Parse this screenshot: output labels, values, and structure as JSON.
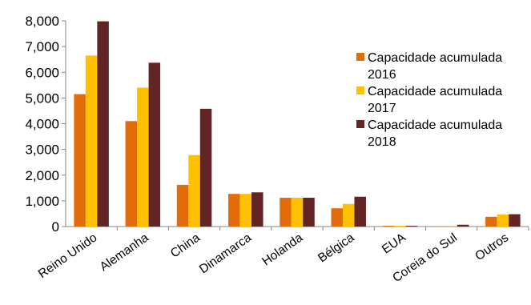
{
  "chart_data": {
    "type": "bar",
    "title": "",
    "xlabel": "",
    "ylabel": "",
    "ylim": [
      0,
      8000
    ],
    "yticks": [
      0,
      1000,
      2000,
      3000,
      4000,
      5000,
      6000,
      7000,
      8000
    ],
    "ytick_labels": [
      "0",
      "1,000",
      "2,000",
      "3,000",
      "4,000",
      "5,000",
      "6,000",
      "7,000",
      "8,000"
    ],
    "grid": false,
    "legend_position": "right",
    "categories": [
      "Reino Unido",
      "Alemanha",
      "China",
      "Dinamarca",
      "Holanda",
      "Bélgica",
      "EUA",
      "Coreia do Sul",
      "Outros"
    ],
    "series": [
      {
        "name": "Capacidade acumulada 2016",
        "legend_lines": [
          "Capacidade acumulada",
          "2016"
        ],
        "color": "#E36C0A",
        "values": [
          5150,
          4100,
          1620,
          1270,
          1120,
          710,
          30,
          5,
          380
        ]
      },
      {
        "name": "Capacidade acumulada 2017",
        "legend_lines": [
          "Capacidade acumulada",
          "2017"
        ],
        "color": "#FFC000",
        "values": [
          6650,
          5400,
          2780,
          1270,
          1120,
          880,
          30,
          5,
          470
        ]
      },
      {
        "name": "Capacidade acumulada 2018",
        "legend_lines": [
          "Capacidade acumulada",
          "2018"
        ],
        "color": "#632523",
        "values": [
          7980,
          6370,
          4580,
          1330,
          1120,
          1160,
          30,
          70,
          480
        ]
      }
    ]
  }
}
